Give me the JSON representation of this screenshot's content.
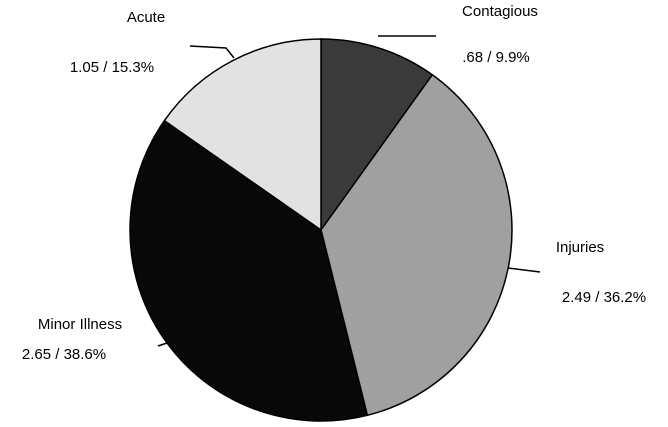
{
  "chart_data": {
    "type": "pie",
    "categories": [
      "Contagious",
      "Injuries",
      "Minor Illness",
      "Acute"
    ],
    "values": [
      9.9,
      36.2,
      38.6,
      15.3
    ],
    "value_labels": [
      ".68 / 9.9%",
      "2.49 / 36.2%",
      "2.65 / 38.6%",
      "1.05 / 15.3%"
    ],
    "colors": [
      "#3a3a3a",
      "#a0a0a0",
      "#080808",
      "#e2e2e2"
    ]
  }
}
